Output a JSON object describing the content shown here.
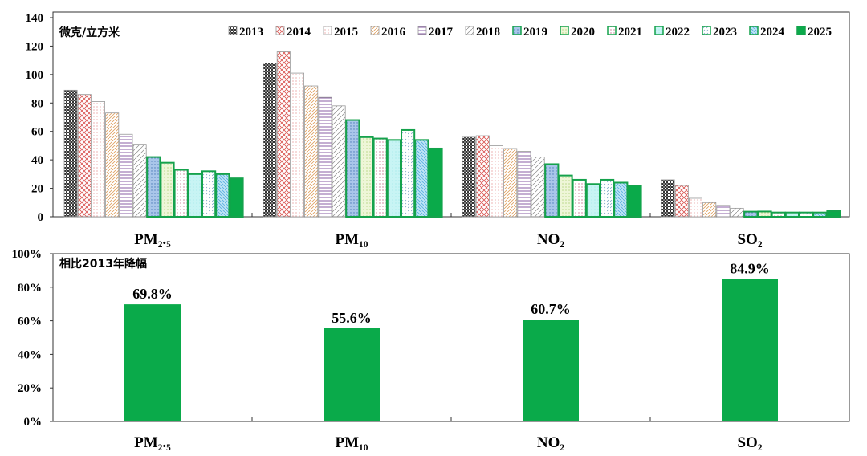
{
  "chart_data": [
    {
      "type": "bar",
      "unit_label": "微克/立方米",
      "categories": [
        "PM₂.₅",
        "PM₁₀",
        "NO₂",
        "SO₂"
      ],
      "ylim": [
        0,
        140
      ],
      "yticks": [
        "0",
        "20",
        "40",
        "60",
        "80",
        "100",
        "120",
        "140"
      ],
      "legend_position": "top-right",
      "grid": false,
      "series": [
        {
          "name": "2013",
          "values": [
            89,
            108,
            56,
            26
          ],
          "color": "#333333",
          "pattern": "checker"
        },
        {
          "name": "2014",
          "values": [
            86,
            116,
            57,
            22
          ],
          "color": "#d9534f",
          "pattern": "crosshatch"
        },
        {
          "name": "2015",
          "values": [
            81,
            101,
            50,
            13
          ],
          "color": "#e08080",
          "pattern": "dots"
        },
        {
          "name": "2016",
          "values": [
            73,
            92,
            48,
            10
          ],
          "color": "#e0a060",
          "pattern": "diagonal"
        },
        {
          "name": "2017",
          "values": [
            58,
            84,
            46,
            8
          ],
          "color": "#7a4a9a",
          "pattern": "horizontal"
        },
        {
          "name": "2018",
          "values": [
            51,
            78,
            42,
            6
          ],
          "color": "#888888",
          "pattern": "diagonal-wide"
        },
        {
          "name": "2019",
          "values": [
            42,
            68,
            37,
            3.6
          ],
          "color": "#6a9bd1",
          "pattern": "dots-blue"
        },
        {
          "name": "2020",
          "values": [
            38,
            56,
            29,
            3.7
          ],
          "color": "#b9d77a",
          "pattern": "dots-green"
        },
        {
          "name": "2021",
          "values": [
            33,
            55,
            26,
            3
          ],
          "color": "#c06080",
          "pattern": "dashes"
        },
        {
          "name": "2022",
          "values": [
            30,
            54,
            23,
            3
          ],
          "color": "#7fe0e0",
          "pattern": "cyan"
        },
        {
          "name": "2023",
          "values": [
            32,
            61,
            26,
            3
          ],
          "color": "#70a0c0",
          "pattern": "dashes-diag"
        },
        {
          "name": "2024",
          "values": [
            30,
            54,
            24,
            3
          ],
          "color": "#5ab0e0",
          "pattern": "diagonal-blue"
        },
        {
          "name": "2025",
          "values": [
            27,
            48,
            22,
            4
          ],
          "color": "#0aaa4a",
          "pattern": "solid"
        }
      ]
    },
    {
      "type": "bar",
      "title": "相比2013年降幅",
      "categories": [
        "PM₂.₅",
        "PM₁₀",
        "NO₂",
        "SO₂"
      ],
      "values": [
        69.8,
        55.6,
        60.7,
        84.9
      ],
      "data_labels": [
        "69.8%",
        "55.6%",
        "60.7%",
        "84.9%"
      ],
      "ylim": [
        0,
        100
      ],
      "yticks": [
        "0%",
        "20%",
        "40%",
        "60%",
        "80%",
        "100%"
      ],
      "color": "#0aaa4a",
      "grid": false
    }
  ]
}
